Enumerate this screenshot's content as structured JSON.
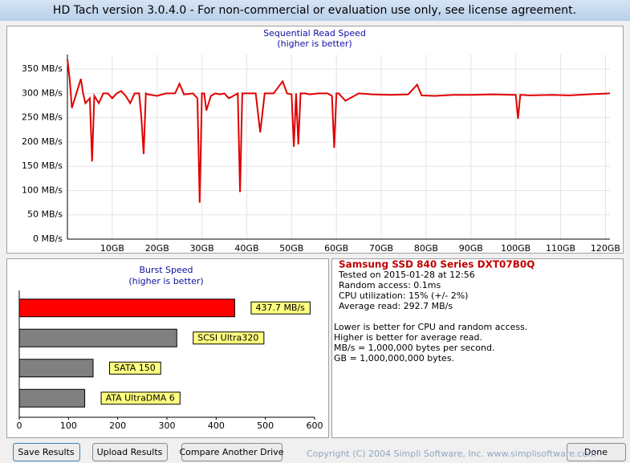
{
  "window": {
    "title": "HD Tach version 3.0.4.0  - For non-commercial or evaluation use only, see license agreement."
  },
  "chart_data": [
    {
      "type": "line",
      "title": "Sequential Read Speed",
      "subtitle": "(higher is better)",
      "color": "#e00000",
      "grid": true,
      "x": [
        0,
        0.5,
        1,
        1.5,
        2,
        3,
        3.5,
        4,
        5,
        5.5,
        6,
        7,
        8,
        9,
        10,
        11,
        12,
        13,
        14,
        15,
        16,
        16.5,
        17,
        17.5,
        18,
        20,
        22,
        24,
        25,
        26,
        28,
        29,
        29.5,
        30,
        30.5,
        31,
        32,
        33,
        34,
        35,
        36,
        37,
        38,
        38.5,
        39,
        40,
        42,
        43,
        44,
        46,
        48,
        49,
        50,
        50.5,
        51,
        51.5,
        52,
        53,
        54,
        56,
        58,
        59,
        59.5,
        60,
        60.5,
        62,
        65,
        68,
        72,
        76,
        78,
        79,
        82,
        86,
        90,
        95,
        100,
        100.5,
        101,
        101.5,
        103,
        108,
        112,
        116,
        121
      ],
      "values": [
        370,
        330,
        270,
        285,
        300,
        330,
        300,
        280,
        290,
        160,
        295,
        280,
        300,
        300,
        290,
        300,
        305,
        295,
        280,
        300,
        300,
        250,
        175,
        300,
        298,
        295,
        300,
        300,
        320,
        298,
        300,
        290,
        75,
        300,
        300,
        265,
        295,
        300,
        298,
        300,
        290,
        295,
        300,
        97,
        300,
        300,
        300,
        220,
        300,
        300,
        325,
        300,
        298,
        190,
        300,
        195,
        300,
        300,
        298,
        300,
        300,
        295,
        188,
        300,
        300,
        285,
        300,
        298,
        297,
        298,
        318,
        296,
        295,
        297,
        297,
        298,
        297,
        248,
        297,
        297,
        296,
        297,
        296,
        298,
        300
      ],
      "xlim": [
        0,
        121
      ],
      "xticks": [
        {
          "value": 10,
          "label": "10GB"
        },
        {
          "value": 20,
          "label": "20GB"
        },
        {
          "value": 30,
          "label": "30GB"
        },
        {
          "value": 40,
          "label": "40GB"
        },
        {
          "value": 50,
          "label": "50GB"
        },
        {
          "value": 60,
          "label": "60GB"
        },
        {
          "value": 70,
          "label": "70GB"
        },
        {
          "value": 80,
          "label": "80GB"
        },
        {
          "value": 90,
          "label": "90GB"
        },
        {
          "value": 100,
          "label": "100GB"
        },
        {
          "value": 110,
          "label": "110GB"
        },
        {
          "value": 120,
          "label": "120GB"
        }
      ],
      "ylim": [
        0,
        380
      ],
      "yticks": [
        {
          "value": 0,
          "label": "0 MB/s"
        },
        {
          "value": 50,
          "label": "50 MB/s"
        },
        {
          "value": 100,
          "label": "100 MB/s"
        },
        {
          "value": 150,
          "label": "150 MB/s"
        },
        {
          "value": 200,
          "label": "200 MB/s"
        },
        {
          "value": 250,
          "label": "250 MB/s"
        },
        {
          "value": 300,
          "label": "300 MB/s"
        },
        {
          "value": 350,
          "label": "350 MB/s"
        }
      ]
    },
    {
      "type": "bar",
      "orientation": "horizontal",
      "title": "Burst Speed",
      "subtitle": "(higher is better)",
      "categories": [
        null,
        "SCSI Ultra320",
        "SATA 150",
        "ATA UltraDMA 6"
      ],
      "values": [
        437.7,
        320,
        150,
        133
      ],
      "value_labels": [
        "437.7 MB/s",
        null,
        null,
        null
      ],
      "colors": [
        "#ff0000",
        "#808080",
        "#808080",
        "#808080"
      ],
      "xlim": [
        0,
        600
      ],
      "xticks": [
        0,
        100,
        200,
        300,
        400,
        500,
        600
      ]
    }
  ],
  "info": {
    "drive": "Samsung SSD 840 Series DXT07B0Q",
    "details": [
      "Tested on 2015-01-28 at 12:56",
      "Random access: 0.1ms",
      "CPU utilization: 15% (+/- 2%)",
      "Average read: 292.7 MB/s"
    ],
    "notes": [
      "Lower is better for CPU and random access.",
      "Higher is better for average read.",
      "MB/s = 1,000,000 bytes per second.",
      "GB = 1,000,000,000 bytes."
    ]
  },
  "buttons": [
    "Save Results",
    "Upload Results",
    "Compare Another Drive",
    "Done"
  ],
  "copyright": "Copyright (C) 2004 Simpli Software, Inc. www.simplisoftware.com"
}
